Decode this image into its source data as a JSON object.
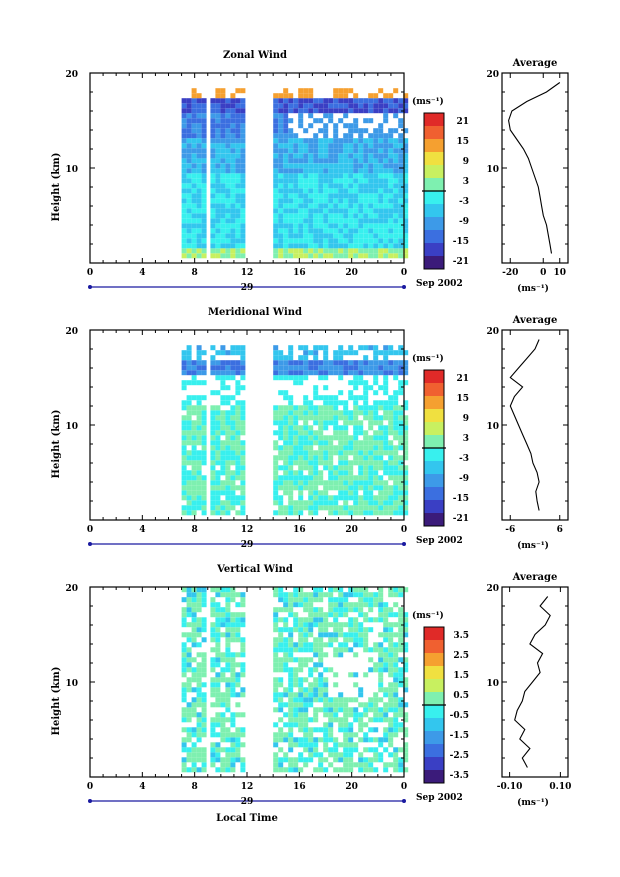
{
  "chart_data": [
    {
      "type": "heatmap",
      "title": "Zonal Wind",
      "ylabel": "Height (km)",
      "xlim": [
        0,
        24
      ],
      "ylim": [
        0,
        20
      ],
      "x_ticks": [
        "0",
        "4",
        "8",
        "12",
        "16",
        "20",
        "0"
      ],
      "y_ticks": [
        "20",
        "10"
      ],
      "date_label": "29",
      "month_label": "Sep 2002",
      "colorbar": {
        "unit": "(ms⁻¹)",
        "labels": [
          "21",
          "15",
          "9",
          "3",
          "-3",
          "-9",
          "-15",
          "-21"
        ]
      },
      "average": {
        "title": "Average",
        "x_ticks": [
          "-20",
          "0",
          "10"
        ],
        "xlim": [
          -25,
          15
        ],
        "unit": "(ms⁻¹)",
        "height_km": [
          1,
          2,
          3,
          4,
          5,
          6,
          7,
          8,
          9,
          10,
          11,
          12,
          13,
          14,
          15,
          16,
          17,
          18,
          19
        ],
        "values": [
          5,
          4,
          3,
          2,
          0,
          -1,
          -2,
          -3,
          -5,
          -7,
          -9,
          -12,
          -16,
          -20,
          -21,
          -19,
          -10,
          2,
          10
        ]
      }
    },
    {
      "type": "heatmap",
      "title": "Meridional Wind",
      "ylabel": "Height (km)",
      "xlim": [
        0,
        24
      ],
      "ylim": [
        0,
        20
      ],
      "x_ticks": [
        "0",
        "4",
        "8",
        "12",
        "16",
        "20",
        "0"
      ],
      "y_ticks": [
        "20",
        "10"
      ],
      "date_label": "29",
      "month_label": "Sep 2002",
      "colorbar": {
        "unit": "(ms⁻¹)",
        "labels": [
          "21",
          "15",
          "9",
          "3",
          "-3",
          "-9",
          "-15",
          "-21"
        ]
      },
      "average": {
        "title": "Average",
        "x_ticks": [
          "-6",
          "6"
        ],
        "xlim": [
          -8,
          8
        ],
        "unit": "(ms⁻¹)",
        "height_km": [
          1,
          2,
          3,
          4,
          5,
          6,
          7,
          8,
          9,
          10,
          11,
          12,
          13,
          14,
          15,
          16,
          17,
          18,
          19
        ],
        "values": [
          1,
          0.5,
          0.2,
          1,
          0.5,
          -0.5,
          -1,
          -2,
          -3,
          -4,
          -5,
          -6,
          -5,
          -3,
          -6,
          -4,
          -2,
          0,
          1
        ]
      }
    },
    {
      "type": "heatmap",
      "title": "Vertical Wind",
      "ylabel": "Height (km)",
      "xlabel": "Local Time",
      "xlim": [
        0,
        24
      ],
      "ylim": [
        0,
        20
      ],
      "x_ticks": [
        "0",
        "4",
        "8",
        "12",
        "16",
        "20",
        "0"
      ],
      "y_ticks": [
        "20",
        "10"
      ],
      "date_label": "29",
      "month_label": "Sep 2002",
      "colorbar": {
        "unit": "(ms⁻¹)",
        "labels": [
          "3.5",
          "2.5",
          "1.5",
          "0.5",
          "-0.5",
          "-1.5",
          "-2.5",
          "-3.5"
        ]
      },
      "average": {
        "title": "Average",
        "x_ticks": [
          "-0.10",
          "0.10"
        ],
        "xlim": [
          -0.13,
          0.13
        ],
        "unit": "(ms⁻¹)",
        "height_km": [
          1,
          2,
          3,
          4,
          5,
          6,
          7,
          8,
          9,
          10,
          11,
          12,
          13,
          14,
          15,
          16,
          17,
          18,
          19
        ],
        "values": [
          -0.03,
          -0.05,
          -0.02,
          -0.06,
          -0.04,
          -0.08,
          -0.07,
          -0.05,
          -0.04,
          -0.01,
          0.02,
          0.01,
          0.03,
          -0.02,
          0.0,
          0.04,
          0.06,
          0.02,
          0.05
        ]
      }
    }
  ]
}
